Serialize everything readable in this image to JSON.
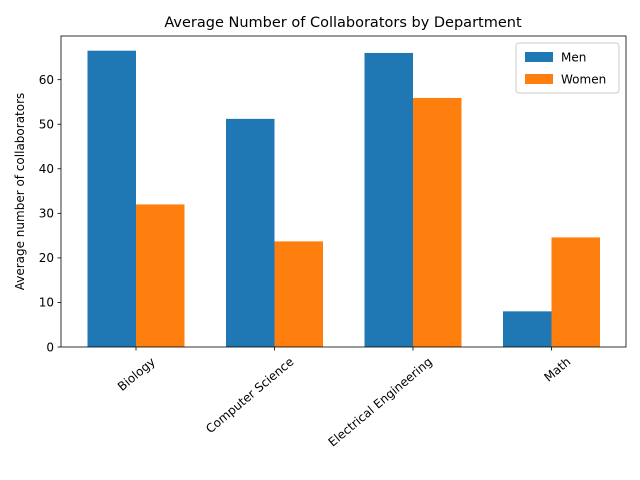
{
  "chart_data": {
    "type": "bar",
    "title": "Average Number of Collaborators by Department",
    "xlabel": "",
    "ylabel": "Average number of collaborators",
    "categories": [
      "Biology",
      "Computer Science",
      "Electrical Engineering",
      "Math"
    ],
    "series": [
      {
        "name": "Men",
        "values": [
          66.5,
          51.2,
          66.0,
          8.0
        ],
        "color": "#1f77b4"
      },
      {
        "name": "Women",
        "values": [
          32.0,
          23.7,
          55.9,
          24.6
        ],
        "color": "#ff7f0e"
      }
    ],
    "ylim": [
      0,
      69.8
    ],
    "yticks": [
      0,
      10,
      20,
      30,
      40,
      50,
      60
    ],
    "grid": false,
    "legend_position": "top-right",
    "xtick_rotation": 40
  }
}
